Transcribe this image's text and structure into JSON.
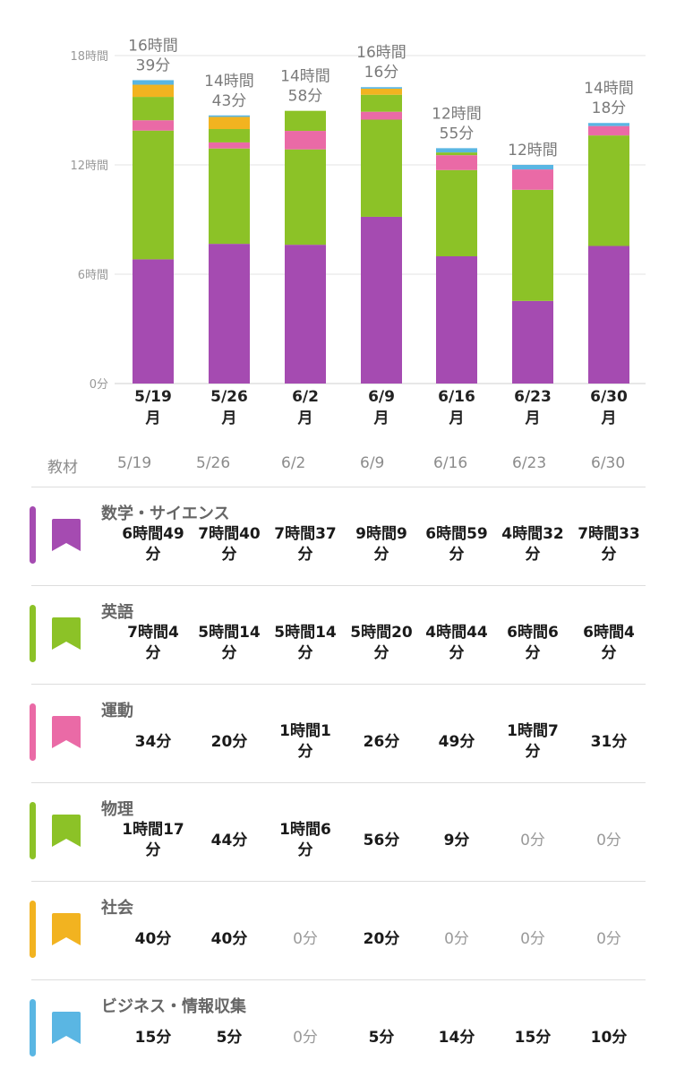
{
  "chart_data": {
    "type": "bar",
    "stacked": true,
    "categories": [
      "5/19",
      "5/26",
      "6/2",
      "6/9",
      "6/16",
      "6/23",
      "6/30"
    ],
    "category_sublabel": "月",
    "y_ticks": [
      "0分",
      "6時間",
      "12時間",
      "18時間"
    ],
    "ylim": [
      0,
      1080
    ],
    "y_unit": "minutes",
    "grid": true,
    "totals": [
      "16時間\n39分",
      "14時間\n43分",
      "14時間\n58分",
      "16時間\n16分",
      "12時間\n55分",
      "12時間",
      "14時間\n18分"
    ],
    "series": [
      {
        "name": "数学・サイエンス",
        "color": "#a54bb1",
        "values": [
          409,
          460,
          457,
          549,
          419,
          272,
          453
        ]
      },
      {
        "name": "英語",
        "color": "#8cc227",
        "values": [
          424,
          314,
          314,
          320,
          284,
          366,
          364
        ]
      },
      {
        "name": "運動",
        "color": "#ea6aa6",
        "values": [
          34,
          20,
          61,
          26,
          49,
          67,
          31
        ]
      },
      {
        "name": "物理",
        "color": "#8cc227",
        "values": [
          77,
          44,
          66,
          56,
          9,
          0,
          0
        ]
      },
      {
        "name": "社会",
        "color": "#f2b320",
        "values": [
          40,
          40,
          0,
          20,
          0,
          0,
          0
        ]
      },
      {
        "name": "ビジネス・情報収集",
        "color": "#5ab6e3",
        "values": [
          15,
          5,
          0,
          5,
          14,
          15,
          10
        ]
      }
    ]
  },
  "table": {
    "header_label": "教材",
    "columns": [
      "5/19",
      "5/26",
      "6/2",
      "6/9",
      "6/16",
      "6/23",
      "6/30"
    ],
    "rows": [
      {
        "name": "数学・サイエンス",
        "color": "#a54bb1",
        "values": [
          "6時間49\n分",
          "7時間40\n分",
          "7時間37\n分",
          "9時間9\n分",
          "6時間59\n分",
          "4時間32\n分",
          "7時間33\n分"
        ]
      },
      {
        "name": "英語",
        "color": "#8cc227",
        "values": [
          "7時間4\n分",
          "5時間14\n分",
          "5時間14\n分",
          "5時間20\n分",
          "4時間44\n分",
          "6時間6\n分",
          "6時間4\n分"
        ]
      },
      {
        "name": "運動",
        "color": "#ea6aa6",
        "values": [
          "34分",
          "20分",
          "1時間1\n分",
          "26分",
          "49分",
          "1時間7\n分",
          "31分"
        ]
      },
      {
        "name": "物理",
        "color": "#8cc227",
        "values": [
          "1時間17\n分",
          "44分",
          "1時間6\n分",
          "56分",
          "9分",
          "0分",
          "0分"
        ]
      },
      {
        "name": "社会",
        "color": "#f2b320",
        "values": [
          "40分",
          "40分",
          "0分",
          "20分",
          "0分",
          "0分",
          "0分"
        ]
      },
      {
        "name": "ビジネス・情報収集",
        "color": "#5ab6e3",
        "values": [
          "15分",
          "5分",
          "0分",
          "5分",
          "14分",
          "15分",
          "10分"
        ]
      }
    ]
  }
}
